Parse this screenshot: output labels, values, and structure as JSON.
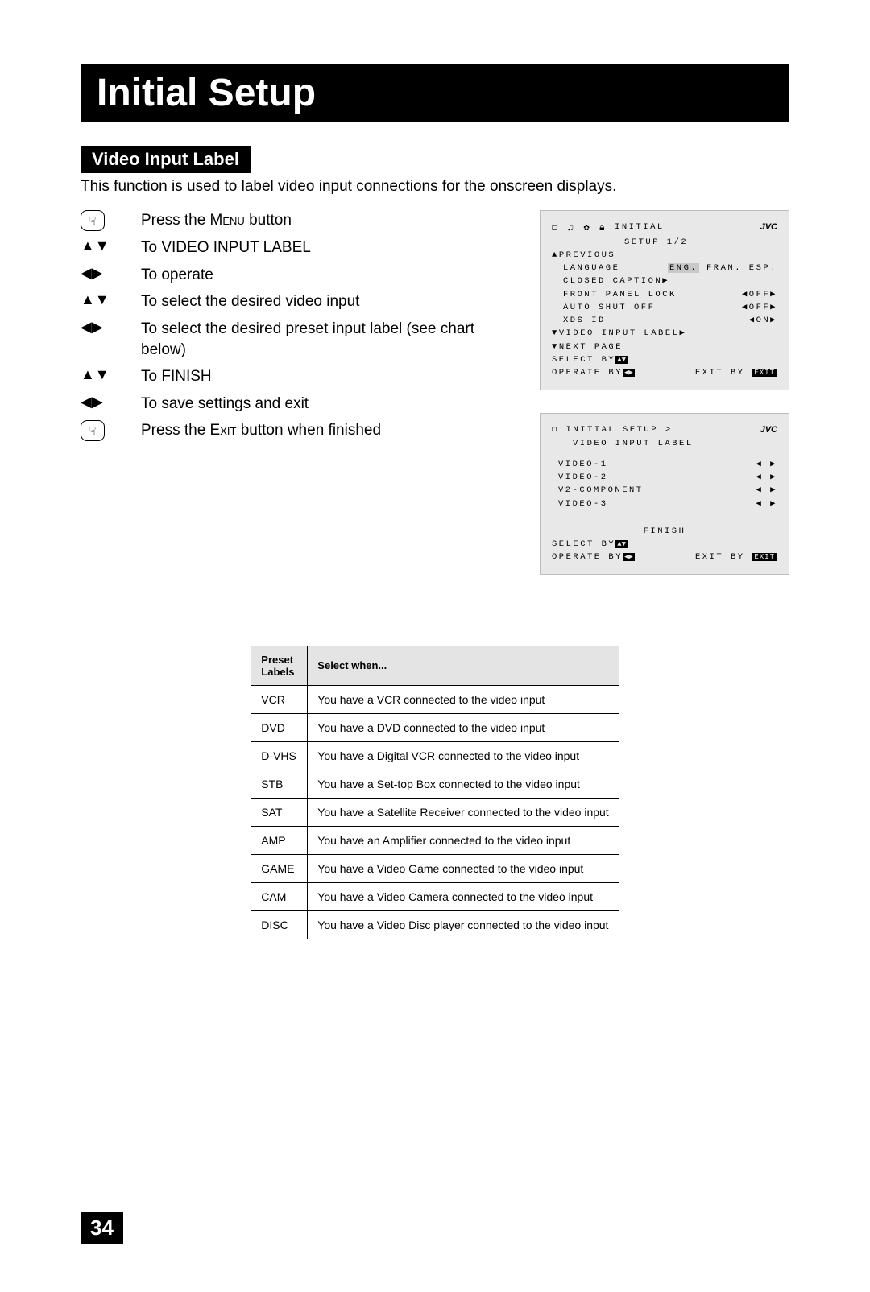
{
  "title": "Initial Setup",
  "section": "Video Input Label",
  "intro": "This function is used to label video input connections for the onscreen displays.",
  "steps": [
    {
      "icon": "hand",
      "text_pre": "Press the ",
      "smallcaps": "Menu",
      "text_post": " button"
    },
    {
      "icon": "updown",
      "text_pre": "To VIDEO INPUT LABEL"
    },
    {
      "icon": "leftright",
      "text_pre": "To operate"
    },
    {
      "icon": "updown",
      "text_pre": "To select the desired video input"
    },
    {
      "icon": "leftright",
      "text_pre": "To select the desired preset input label (see chart below)"
    },
    {
      "icon": "updown",
      "text_pre": "To FINISH"
    },
    {
      "icon": "leftright",
      "text_pre": "To save settings and exit"
    },
    {
      "icon": "hand",
      "text_pre": "Press the ",
      "smallcaps": "Exit",
      "text_post": " button when finished"
    }
  ],
  "osd1": {
    "brand": "JVC",
    "header1": "INITIAL",
    "header2": "SETUP 1/2",
    "previous": "PREVIOUS",
    "language_label": "LANGUAGE",
    "language_selected": "ENG.",
    "language_opts": " FRAN. ESP.",
    "closed_caption": "CLOSED CAPTION",
    "front_panel": "FRONT PANEL LOCK",
    "front_panel_val": "OFF",
    "auto_shut": "AUTO SHUT OFF",
    "auto_shut_val": "OFF",
    "xds": "XDS ID",
    "xds_val": "ON",
    "video_input_label": "VIDEO INPUT LABEL",
    "next_page": "NEXT PAGE",
    "select_by": "SELECT  BY",
    "operate_by": "OPERATE BY",
    "exit_by": "EXIT BY",
    "exit_label": "EXIT"
  },
  "osd2": {
    "brand": "JVC",
    "header": "INITIAL SETUP >",
    "subheader": "VIDEO INPUT LABEL",
    "rows": [
      {
        "label": "VIDEO-1"
      },
      {
        "label": "VIDEO-2"
      },
      {
        "label": "V2-COMPONENT"
      },
      {
        "label": "VIDEO-3"
      }
    ],
    "finish": "FINISH",
    "select_by": "SELECT  BY",
    "operate_by": "OPERATE BY",
    "exit_by": "EXIT BY",
    "exit_label": "EXIT"
  },
  "table": {
    "header_labels": "Preset Labels",
    "header_when": "Select when...",
    "rows": [
      {
        "label": "VCR",
        "when": "You have a VCR connected to the video input"
      },
      {
        "label": "DVD",
        "when": "You have a DVD connected to the video input"
      },
      {
        "label": "D-VHS",
        "when": "You have a Digital VCR connected to the video input"
      },
      {
        "label": "STB",
        "when": "You have a Set-top Box connected to the video input"
      },
      {
        "label": "SAT",
        "when": "You have a Satellite Receiver connected to the video input"
      },
      {
        "label": "AMP",
        "when": "You have an Amplifier connected to the video input"
      },
      {
        "label": "GAME",
        "when": "You have a Video Game connected to the video input"
      },
      {
        "label": "CAM",
        "when": "You have a Video Camera connected to the video input"
      },
      {
        "label": "DISC",
        "when": "You have a Video Disc player connected to the video input"
      }
    ]
  },
  "page_number": "34",
  "glyphs": {
    "updown": "▲▼",
    "leftright": "◀▶",
    "up": "▲",
    "down": "▼",
    "left": "◀",
    "right": "▶",
    "tri_left": "◀",
    "tri_right": "▶"
  }
}
